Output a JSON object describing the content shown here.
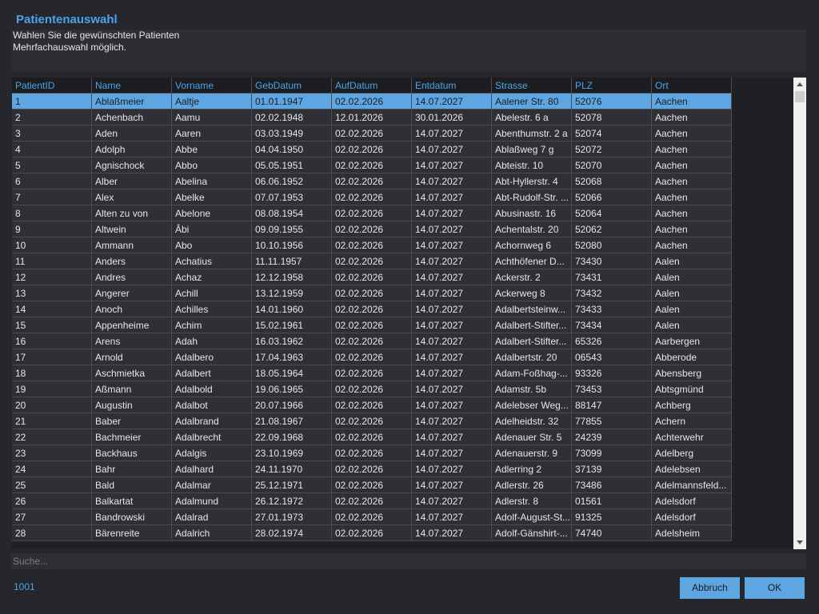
{
  "header": {
    "title": "Patientenauswahl",
    "lines": [
      "Wahlen Sie die gewünschten Patienten",
      "Mehrfachauswahl möglich."
    ]
  },
  "table": {
    "columns": [
      "PatientID",
      "Name",
      "Vorname",
      "GebDatum",
      "AufDatum",
      "Entdatum",
      "Strasse",
      "PLZ",
      "Ort"
    ],
    "selected_row": 0,
    "rows": [
      [
        "1",
        "Ablaßmeier",
        "Aaltje",
        "01.01.1947",
        "02.02.2026",
        "14.07.2027",
        "Aalener Str. 80",
        "52076",
        "Aachen"
      ],
      [
        "2",
        "Achenbach",
        "Aamu",
        "02.02.1948",
        "12.01.2026",
        "30.01.2026",
        "Abelestr. 6 a",
        "52078",
        "Aachen"
      ],
      [
        "3",
        "Aden",
        "Aaren",
        "03.03.1949",
        "02.02.2026",
        "14.07.2027",
        "Abenthumstr. 2 a",
        "52074",
        "Aachen"
      ],
      [
        "4",
        "Adolph",
        "Abbe",
        "04.04.1950",
        "02.02.2026",
        "14.07.2027",
        "Ablaßweg 7 g",
        "52072",
        "Aachen"
      ],
      [
        "5",
        "Agnischock",
        "Abbo",
        "05.05.1951",
        "02.02.2026",
        "14.07.2027",
        "Abteistr. 10",
        "52070",
        "Aachen"
      ],
      [
        "6",
        "Alber",
        "Abelina",
        "06.06.1952",
        "02.02.2026",
        "14.07.2027",
        "Abt-Hyllerstr. 4",
        "52068",
        "Aachen"
      ],
      [
        "7",
        "Alex",
        "Abelke",
        "07.07.1953",
        "02.02.2026",
        "14.07.2027",
        "Abt-Rudolf-Str. ...",
        "52066",
        "Aachen"
      ],
      [
        "8",
        "Alten zu von",
        "Abelone",
        "08.08.1954",
        "02.02.2026",
        "14.07.2027",
        "Abusinastr. 16",
        "52064",
        "Aachen"
      ],
      [
        "9",
        "Altwein",
        "Âbi",
        "09.09.1955",
        "02.02.2026",
        "14.07.2027",
        "Achentalstr. 20",
        "52062",
        "Aachen"
      ],
      [
        "10",
        "Ammann",
        "Abo",
        "10.10.1956",
        "02.02.2026",
        "14.07.2027",
        "Achornweg 6",
        "52080",
        "Aachen"
      ],
      [
        "11",
        "Anders",
        "Achatius",
        "11.11.1957",
        "02.02.2026",
        "14.07.2027",
        "Achthöfener D...",
        "73430",
        "Aalen"
      ],
      [
        "12",
        "Andres",
        "Achaz",
        "12.12.1958",
        "02.02.2026",
        "14.07.2027",
        "Ackerstr. 2",
        "73431",
        "Aalen"
      ],
      [
        "13",
        "Angerer",
        "Achill",
        "13.12.1959",
        "02.02.2026",
        "14.07.2027",
        "Ackerweg 8",
        "73432",
        "Aalen"
      ],
      [
        "14",
        "Anoch",
        "Achilles",
        "14.01.1960",
        "02.02.2026",
        "14.07.2027",
        "Adalbertsteinw...",
        "73433",
        "Aalen"
      ],
      [
        "15",
        "Appenheime",
        "Achim",
        "15.02.1961",
        "02.02.2026",
        "14.07.2027",
        "Adalbert-Stifter...",
        "73434",
        "Aalen"
      ],
      [
        "16",
        "Arens",
        "Adah",
        "16.03.1962",
        "02.02.2026",
        "14.07.2027",
        "Adalbert-Stifter...",
        "65326",
        "Aarbergen"
      ],
      [
        "17",
        "Arnold",
        "Adalbero",
        "17.04.1963",
        "02.02.2026",
        "14.07.2027",
        "Adalbertstr. 20",
        "06543",
        "Abberode"
      ],
      [
        "18",
        "Aschmietka",
        "Adalbert",
        "18.05.1964",
        "02.02.2026",
        "14.07.2027",
        "Adam-Foßhag-...",
        "93326",
        "Abensberg"
      ],
      [
        "19",
        "Aßmann",
        "Adalbold",
        "19.06.1965",
        "02.02.2026",
        "14.07.2027",
        "Adamstr. 5b",
        "73453",
        "Abtsgmünd"
      ],
      [
        "20",
        "Augustin",
        "Adalbot",
        "20.07.1966",
        "02.02.2026",
        "14.07.2027",
        "Adelebser Weg...",
        "88147",
        "Achberg"
      ],
      [
        "21",
        "Baber",
        "Adalbrand",
        "21.08.1967",
        "02.02.2026",
        "14.07.2027",
        "Adelheidstr. 32",
        "77855",
        "Achern"
      ],
      [
        "22",
        "Bachmeier",
        "Adalbrecht",
        "22.09.1968",
        "02.02.2026",
        "14.07.2027",
        "Adenauer Str. 5",
        "24239",
        "Achterwehr"
      ],
      [
        "23",
        "Backhaus",
        "Adalgis",
        "23.10.1969",
        "02.02.2026",
        "14.07.2027",
        "Adenauerstr. 9",
        "73099",
        "Adelberg"
      ],
      [
        "24",
        "Bahr",
        "Adalhard",
        "24.11.1970",
        "02.02.2026",
        "14.07.2027",
        "Adlerring 2",
        "37139",
        "Adelebsen"
      ],
      [
        "25",
        "Bald",
        "Adalmar",
        "25.12.1971",
        "02.02.2026",
        "14.07.2027",
        "Adlerstr. 26",
        "73486",
        "Adelmannsfeld..."
      ],
      [
        "26",
        "Balkartat",
        "Adalmund",
        "26.12.1972",
        "02.02.2026",
        "14.07.2027",
        "Adlerstr. 8",
        "01561",
        "Adelsdorf"
      ],
      [
        "27",
        "Bandrowski",
        "Adalrad",
        "27.01.1973",
        "02.02.2026",
        "14.07.2027",
        "Adolf-August-St...",
        "91325",
        "Adelsdorf"
      ],
      [
        "28",
        "Bärenreite",
        "Adalrich",
        "28.02.1974",
        "02.02.2026",
        "14.07.2027",
        "Adolf-Gänshirt-...",
        "74740",
        "Adelsheim"
      ]
    ]
  },
  "search": {
    "placeholder": "Suche..."
  },
  "footer": {
    "count": "1001",
    "buttons": [
      "Abbruch",
      "OK"
    ]
  }
}
